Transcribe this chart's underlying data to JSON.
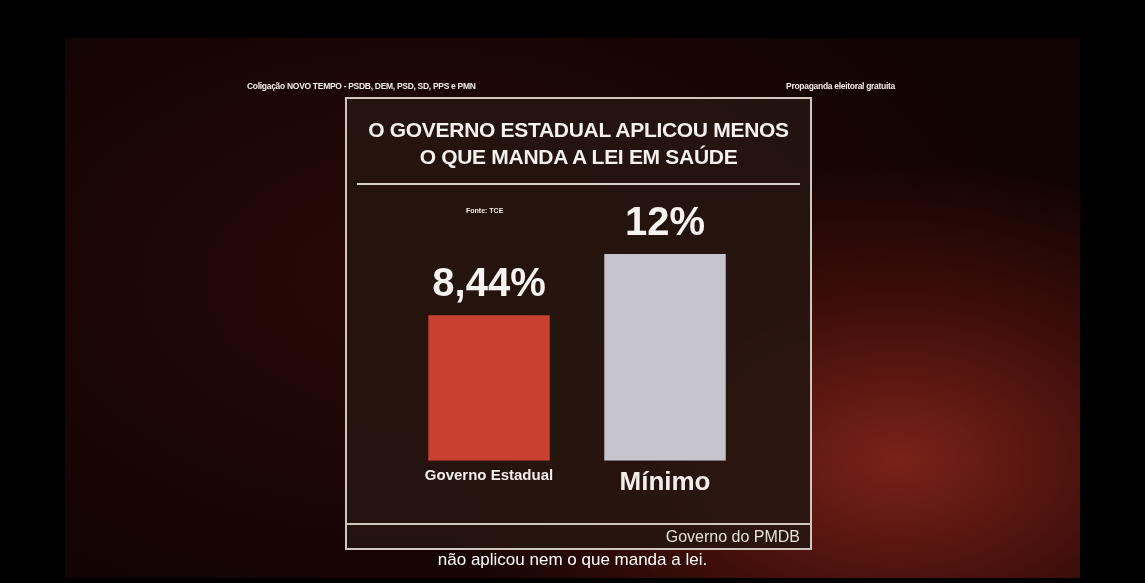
{
  "chart_data": {
    "type": "bar",
    "title": "O GOVERNO ESTADUAL APLICOU MENOS\nO QUE MANDA A LEI EM SAÚDE",
    "categories": [
      "Governo Estadual",
      "Mínimo"
    ],
    "values": [
      8.44,
      12
    ],
    "colors": [
      "#c9402f",
      "#c6c4cc"
    ],
    "value_labels": [
      "8,44%",
      "12%"
    ],
    "annotations": [
      "Coligação NOVO TEMPO - PSDB, DEM, PSD, SD, PPS e PMN",
      "Propaganda eleitoral gratuita",
      "Fonte: TCE",
      "Governo do PMDB",
      "não aplicou nem o que manda a lei."
    ]
  }
}
